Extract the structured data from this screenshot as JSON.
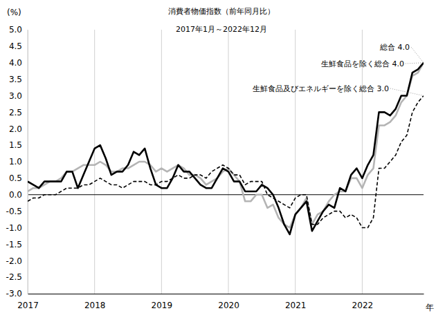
{
  "chart_data": {
    "type": "line",
    "title": "消費者物価指数（前年同月比）",
    "subtitle": "2017年1月～2022年12月",
    "xlabel": "年",
    "ylabel": "(%)",
    "x": [
      2017,
      2017.0833,
      2017.1667,
      2017.25,
      2017.3333,
      2017.4167,
      2017.5,
      2017.5833,
      2017.6667,
      2017.75,
      2017.8333,
      2017.9167,
      2018,
      2018.0833,
      2018.1667,
      2018.25,
      2018.3333,
      2018.4167,
      2018.5,
      2018.5833,
      2018.6667,
      2018.75,
      2018.8333,
      2018.9167,
      2019,
      2019.0833,
      2019.1667,
      2019.25,
      2019.3333,
      2019.4167,
      2019.5,
      2019.5833,
      2019.6667,
      2019.75,
      2019.8333,
      2019.9167,
      2020,
      2020.0833,
      2020.1667,
      2020.25,
      2020.3333,
      2020.4167,
      2020.5,
      2020.5833,
      2020.6667,
      2020.75,
      2020.8333,
      2020.9167,
      2021,
      2021.0833,
      2021.1667,
      2021.25,
      2021.3333,
      2021.4167,
      2021.5,
      2021.5833,
      2021.6667,
      2021.75,
      2021.8333,
      2021.9167,
      2022,
      2022.0833,
      2022.1667,
      2022.25,
      2022.3333,
      2022.4167,
      2022.5,
      2022.5833,
      2022.6667,
      2022.75,
      2022.8333,
      2022.9167
    ],
    "series": [
      {
        "name": "総合",
        "color": "#000000",
        "line_style": "solid",
        "values": [
          0.4,
          0.3,
          0.2,
          0.4,
          0.4,
          0.4,
          0.4,
          0.7,
          0.7,
          0.2,
          0.6,
          1.0,
          1.4,
          1.5,
          1.1,
          0.6,
          0.7,
          0.7,
          0.9,
          1.3,
          1.2,
          1.4,
          0.8,
          0.3,
          0.2,
          0.2,
          0.5,
          0.9,
          0.7,
          0.7,
          0.5,
          0.3,
          0.2,
          0.2,
          0.5,
          0.8,
          0.7,
          0.4,
          0.4,
          0.1,
          0.1,
          0.1,
          0.3,
          0.2,
          0.0,
          -0.4,
          -0.9,
          -1.2,
          -0.6,
          -0.4,
          -0.2,
          -1.1,
          -0.8,
          -0.5,
          -0.3,
          -0.4,
          0.2,
          0.1,
          0.6,
          0.8,
          0.5,
          0.9,
          1.2,
          2.5,
          2.5,
          2.4,
          2.6,
          3.0,
          3.0,
          3.7,
          3.8,
          4.0
        ],
        "value_labels": [
          null,
          null,
          null,
          null,
          null,
          null,
          null,
          null,
          null,
          null,
          null,
          null,
          null,
          null,
          null,
          null,
          null,
          null,
          null,
          null,
          null,
          null,
          null,
          null,
          null,
          null,
          null,
          null,
          null,
          null,
          null,
          null,
          null,
          null,
          null,
          null,
          null,
          null,
          null,
          null,
          null,
          null,
          null,
          null,
          null,
          null,
          null,
          null,
          null,
          null,
          null,
          null,
          null,
          null,
          null,
          null,
          null,
          null,
          null,
          null,
          null,
          null,
          null,
          null,
          null,
          null,
          null,
          null,
          null,
          null,
          null,
          "4.0"
        ]
      },
      {
        "name": "生鮮食品を除く総合",
        "color": "#b4b4b4",
        "line_style": "solid",
        "values": [
          0.1,
          0.2,
          0.2,
          0.3,
          0.4,
          0.4,
          0.5,
          0.7,
          0.7,
          0.8,
          0.9,
          0.9,
          0.9,
          1.0,
          0.9,
          0.7,
          0.7,
          0.8,
          0.8,
          0.9,
          1.0,
          1.0,
          0.9,
          0.7,
          0.8,
          0.7,
          0.8,
          0.9,
          0.8,
          0.6,
          0.6,
          0.5,
          0.3,
          0.4,
          0.5,
          0.7,
          0.8,
          0.6,
          0.4,
          -0.2,
          -0.2,
          0.0,
          0.0,
          -0.4,
          -0.3,
          -0.7,
          -0.9,
          -1.0,
          -0.6,
          -0.4,
          -0.1,
          -0.9,
          -0.6,
          -0.5,
          -0.2,
          0.0,
          0.1,
          0.1,
          0.5,
          0.5,
          0.2,
          0.6,
          0.8,
          2.1,
          2.1,
          2.2,
          2.4,
          2.8,
          3.0,
          3.6,
          3.7,
          4.0
        ],
        "value_labels": [
          null,
          null,
          null,
          null,
          null,
          null,
          null,
          null,
          null,
          null,
          null,
          null,
          null,
          null,
          null,
          null,
          null,
          null,
          null,
          null,
          null,
          null,
          null,
          null,
          null,
          null,
          null,
          null,
          null,
          null,
          null,
          null,
          null,
          null,
          null,
          null,
          null,
          null,
          null,
          null,
          null,
          null,
          null,
          null,
          null,
          null,
          null,
          null,
          null,
          null,
          null,
          null,
          null,
          null,
          null,
          null,
          null,
          null,
          null,
          null,
          null,
          null,
          null,
          null,
          null,
          null,
          null,
          null,
          null,
          null,
          null,
          "4.0"
        ]
      },
      {
        "name": "生鮮食品及びエネルギーを除く総合",
        "color": "#000000",
        "line_style": "dashed",
        "values": [
          -0.2,
          -0.1,
          -0.1,
          0.0,
          0.0,
          0.0,
          0.1,
          0.2,
          0.2,
          0.2,
          0.3,
          0.3,
          0.4,
          0.5,
          0.4,
          0.3,
          0.3,
          0.2,
          0.3,
          0.4,
          0.4,
          0.4,
          0.3,
          0.3,
          0.4,
          0.4,
          0.5,
          0.6,
          0.5,
          0.5,
          0.6,
          0.6,
          0.5,
          0.7,
          0.8,
          0.9,
          0.8,
          0.6,
          0.6,
          0.3,
          0.4,
          0.4,
          0.4,
          0.0,
          -0.1,
          -0.2,
          -0.3,
          -0.4,
          -0.1,
          0.0,
          0.0,
          -0.9,
          -0.9,
          -0.7,
          -0.6,
          -0.5,
          -0.5,
          -0.7,
          -0.6,
          -0.7,
          -1.0,
          -1.0,
          -0.7,
          0.8,
          0.8,
          1.0,
          1.2,
          1.6,
          1.8,
          2.5,
          2.8,
          3.0
        ],
        "value_labels": [
          null,
          null,
          null,
          null,
          null,
          null,
          null,
          null,
          null,
          null,
          null,
          null,
          null,
          null,
          null,
          null,
          null,
          null,
          null,
          null,
          null,
          null,
          null,
          null,
          null,
          null,
          null,
          null,
          null,
          null,
          null,
          null,
          null,
          null,
          null,
          null,
          null,
          null,
          null,
          null,
          null,
          null,
          null,
          null,
          null,
          null,
          null,
          null,
          null,
          null,
          null,
          null,
          null,
          null,
          null,
          null,
          null,
          null,
          null,
          null,
          null,
          null,
          null,
          null,
          null,
          null,
          null,
          null,
          null,
          null,
          null,
          "3.0"
        ]
      }
    ],
    "xlim": [
      2017,
      2022.9167
    ],
    "xticks": [
      2017,
      2018,
      2019,
      2020,
      2021,
      2022
    ],
    "ylim": [
      -3,
      5
    ],
    "yticks": [
      {
        "value": -3,
        "label": "-3.0"
      },
      {
        "value": -2.5,
        "label": "-2.5"
      },
      {
        "value": -2,
        "label": "-2.0"
      },
      {
        "value": -1.5,
        "label": "-1.5"
      },
      {
        "value": -1,
        "label": "-1.0"
      },
      {
        "value": -0.5,
        "label": "-0.5"
      },
      {
        "value": 0,
        "label": "0.0"
      },
      {
        "value": 0.5,
        "label": "0.5"
      },
      {
        "value": 1,
        "label": "1.0"
      },
      {
        "value": 1.5,
        "label": "1.5"
      },
      {
        "value": 2,
        "label": "2.0"
      },
      {
        "value": 2.5,
        "label": "2.5"
      },
      {
        "value": 3,
        "label": "3.0"
      },
      {
        "value": 3.5,
        "label": "3.5"
      },
      {
        "value": 4,
        "label": "4.0"
      },
      {
        "value": 4.5,
        "label": "4.5"
      },
      {
        "value": 5,
        "label": "5.0"
      }
    ],
    "grid": true
  }
}
